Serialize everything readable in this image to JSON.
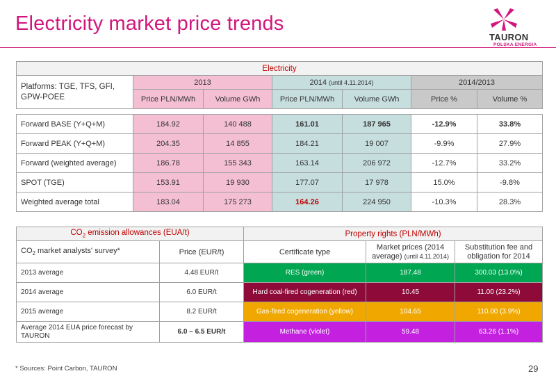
{
  "title": "Electricity market price trends",
  "logo": {
    "brand": "TAURON",
    "sub": "POLSKA ENERGIA",
    "color": "#d1177d"
  },
  "electricity": {
    "heading": "Electricity",
    "platforms_label": "Platforms: TGE, TFS, GFI, GPW-POEE",
    "period_2013": "2013",
    "period_2014": "2014",
    "period_2014_note": "(until 4.11.2014)",
    "period_change": "2014/2013",
    "col_price": "Price PLN/MWh",
    "col_volume": "Volume GWh",
    "col_price_pct": "Price %",
    "col_volume_pct": "Volume %",
    "rows": [
      {
        "label": "Forward BASE (Y+Q+M)",
        "p13": "184.92",
        "v13": "140 488",
        "p14": "161.01",
        "v14": "187 965",
        "pp": "-12.9%",
        "vp": "33.8%"
      },
      {
        "label": "Forward PEAK (Y+Q+M)",
        "p13": "204.35",
        "v13": "14 855",
        "p14": "184.21",
        "v14": "19 007",
        "pp": "-9.9%",
        "vp": "27.9%"
      },
      {
        "label": "Forward (weighted average)",
        "p13": "186.78",
        "v13": "155 343",
        "p14": "163.14",
        "v14": "206 972",
        "pp": "-12.7%",
        "vp": "33.2%"
      },
      {
        "label": "SPOT (TGE)",
        "p13": "153.91",
        "v13": "19 930",
        "p14": "177.07",
        "v14": "17 978",
        "pp": "15.0%",
        "vp": "-9.8%"
      },
      {
        "label": "Weighted average total",
        "p13": "183.04",
        "v13": "175 273",
        "p14": "164.26",
        "v14": "224 950",
        "pp": "-10.3%",
        "vp": "28.3%"
      }
    ]
  },
  "co2": {
    "heading_pre": "CO",
    "heading_sub": "2",
    "heading_post": " emission allowances (EUA/t)",
    "survey_pre": "CO",
    "survey_sub": "2",
    "survey_post": " market analysts' survey*",
    "col_price": "Price (EUR/t)",
    "rows": [
      {
        "label": "2013 average",
        "price": "4.48 EUR/t"
      },
      {
        "label": "2014 average",
        "price": "6.0 EUR/t"
      },
      {
        "label": "2015 average",
        "price": "8.2 EUR/t"
      },
      {
        "label": "Average 2014 EUA price forecast by TAURON",
        "price": "6.0 – 6.5 EUR/t"
      }
    ]
  },
  "property": {
    "heading": "Property rights (PLN/MWh)",
    "col_cert": "Certificate type",
    "col_market": "Market prices (2014 average)",
    "col_market_note": "(until 4.11.2014)",
    "col_fee": "Substitution fee and obligation for 2014",
    "rows": [
      {
        "cert": "RES (green)",
        "market": "187.48",
        "fee": "300.03 (13.0%)",
        "color": "#00a651"
      },
      {
        "cert": "Hard coal-fired cogeneration (red)",
        "market": "10.45",
        "fee": "11.00 (23.2%)",
        "color": "#8e0a39"
      },
      {
        "cert": "Gas-fired cogeneration (yellow)",
        "market": "104.65",
        "fee": "110.00 (3.9%)",
        "color": "#f0a800"
      },
      {
        "cert": "Methane (violet)",
        "market": "59.48",
        "fee": "63.26 (1.1%)",
        "color": "#c420e0"
      }
    ]
  },
  "footnote": "* Sources: Point Carbon, TAURON",
  "page_number": "29"
}
